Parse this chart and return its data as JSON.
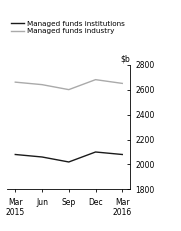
{
  "x_labels": [
    "Mar\n2015",
    "Jun",
    "Sep",
    "Dec",
    "Mar\n2016"
  ],
  "x_positions": [
    0,
    1,
    2,
    3,
    4
  ],
  "institutions_values": [
    2080,
    2060,
    2020,
    2100,
    2080
  ],
  "industry_values": [
    2660,
    2640,
    2600,
    2680,
    2650
  ],
  "institutions_color": "#1a1a1a",
  "industry_color": "#aaaaaa",
  "ylim": [
    1800,
    2800
  ],
  "yticks": [
    1800,
    2000,
    2200,
    2400,
    2600,
    2800
  ],
  "legend_labels": [
    "Managed funds institutions",
    "Managed funds industry"
  ],
  "line_width": 1.0,
  "tick_fontsize": 5.5,
  "legend_fontsize": 5.2
}
